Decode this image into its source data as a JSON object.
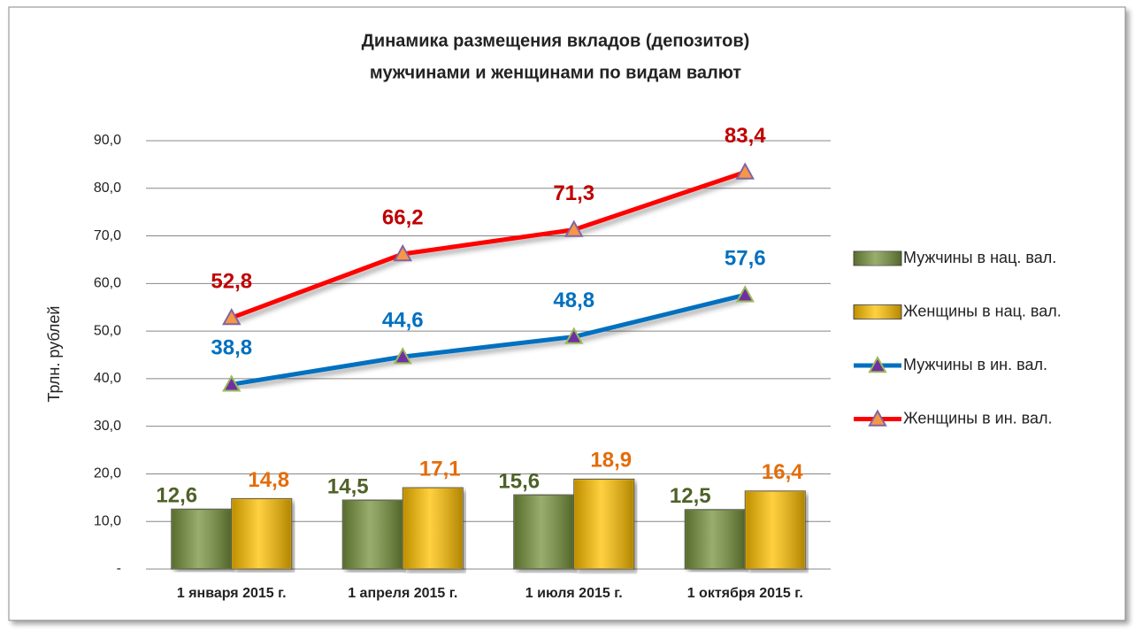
{
  "chart_data": {
    "type": "combo",
    "title": [
      "Динамика размещения вкладов (депозитов)",
      "мужчинами и женщинами по видам валют"
    ],
    "y_label": "Трлн. рублей",
    "categories": [
      "1 января 2015 г.",
      "1 апреля 2015 г.",
      "1 июля 2015 г.",
      "1 октября 2015 г."
    ],
    "series": [
      {
        "name": "Мужчины в нац. вал.",
        "type": "bar",
        "color": "#77933c",
        "label_color": "#4f6228",
        "values": [
          12.6,
          14.5,
          15.6,
          12.5
        ],
        "value_labels": [
          "12,6",
          "14,5",
          "15,6",
          "12,5"
        ]
      },
      {
        "name": "Женщины в нац. вал.",
        "type": "bar",
        "color": "#ffc000",
        "label_color": "#e46c0a",
        "values": [
          14.8,
          17.1,
          18.9,
          16.4
        ],
        "value_labels": [
          "14,8",
          "17,1",
          "18,9",
          "16,4"
        ]
      },
      {
        "name": "Мужчины в ин. вал.",
        "type": "line",
        "color": "#0070c0",
        "label_color": "#0070c0",
        "marker_color": "#7030a0",
        "marker_edge": "#9bbb59",
        "values": [
          38.8,
          44.6,
          48.8,
          57.6
        ],
        "value_labels": [
          "38,8",
          "44,6",
          "48,8",
          "57,6"
        ]
      },
      {
        "name": "Женщины в ин. вал.",
        "type": "line",
        "color": "#ff0000",
        "label_color": "#c00000",
        "marker_color": "#f79646",
        "marker_edge": "#8064a2",
        "values": [
          52.8,
          66.2,
          71.3,
          83.4
        ],
        "value_labels": [
          "52,8",
          "66,2",
          "71,3",
          "83,4"
        ]
      }
    ],
    "ylim": [
      0,
      90
    ],
    "yticks": [
      {
        "value": 0,
        "label": "-"
      },
      {
        "value": 10,
        "label": "10,0"
      },
      {
        "value": 20,
        "label": "20,0"
      },
      {
        "value": 30,
        "label": "30,0"
      },
      {
        "value": 40,
        "label": "40,0"
      },
      {
        "value": 50,
        "label": "50,0"
      },
      {
        "value": 60,
        "label": "60,0"
      },
      {
        "value": 70,
        "label": "70,0"
      },
      {
        "value": 80,
        "label": "80,0"
      },
      {
        "value": 90,
        "label": "90,0"
      }
    ],
    "grid": true,
    "legend": "right"
  }
}
